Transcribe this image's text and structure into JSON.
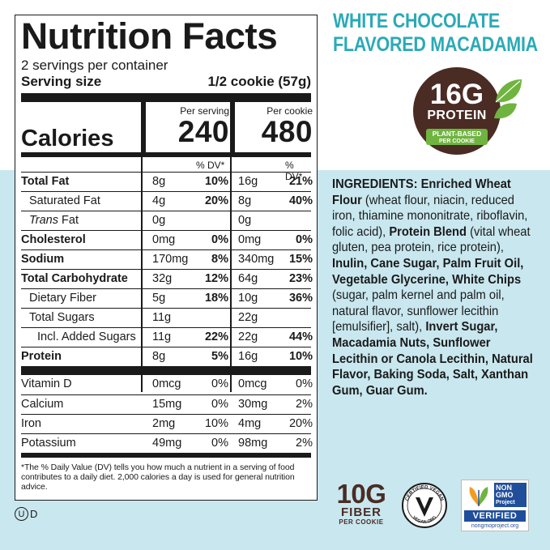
{
  "label": {
    "title": "Nutrition Facts",
    "servings_per_container": "2 servings per container",
    "serving_size_label": "Serving size",
    "serving_size_value": "1/2 cookie (57g)",
    "calories_label": "Calories",
    "col1_header": "Per serving",
    "col2_header": "Per cookie",
    "calories_col1": "240",
    "calories_col2": "480",
    "dv_header": "% DV*",
    "nutrients": [
      {
        "name": "Total Fat",
        "v1": "8g",
        "p1": "10%",
        "v2": "16g",
        "p2": "21%"
      },
      {
        "name": "Saturated Fat",
        "v1": "4g",
        "p1": "20%",
        "v2": "8g",
        "p2": "40%"
      },
      {
        "name": "Trans",
        "suffix": " Fat",
        "v1": "0g",
        "p1": "",
        "v2": "0g",
        "p2": ""
      },
      {
        "name": "Cholesterol",
        "v1": "0mg",
        "p1": "0%",
        "v2": "0mg",
        "p2": "0%"
      },
      {
        "name": "Sodium",
        "v1": "170mg",
        "p1": "8%",
        "v2": "340mg",
        "p2": "15%"
      },
      {
        "name": "Total Carbohydrate",
        "v1": "32g",
        "p1": "12%",
        "v2": "64g",
        "p2": "23%"
      },
      {
        "name": "Dietary Fiber",
        "v1": "5g",
        "p1": "18%",
        "v2": "10g",
        "p2": "36%"
      },
      {
        "name": "Total Sugars",
        "v1": "11g",
        "p1": "",
        "v2": "22g",
        "p2": ""
      },
      {
        "name": "Incl. Added Sugars",
        "v1": "11g",
        "p1": "22%",
        "v2": "22g",
        "p2": "44%"
      },
      {
        "name": "Protein",
        "v1": "8g",
        "p1": "5%",
        "v2": "16g",
        "p2": "10%"
      }
    ],
    "vitamins": [
      {
        "name": "Vitamin D",
        "v1": "0mcg",
        "p1": "0%",
        "v2": "0mcg",
        "p2": "0%"
      },
      {
        "name": "Calcium",
        "v1": "15mg",
        "p1": "0%",
        "v2": "30mg",
        "p2": "2%"
      },
      {
        "name": "Iron",
        "v1": "2mg",
        "p1": "10%",
        "v2": "4mg",
        "p2": "20%"
      },
      {
        "name": "Potassium",
        "v1": "49mg",
        "p1": "0%",
        "v2": "98mg",
        "p2": "2%"
      }
    ],
    "footnote": "*The % Daily Value (DV) tells you how much a nutrient in a serving of food contributes to a daily diet. 2,000 calories a day is used for general nutrition advice."
  },
  "kosher_mark": "U",
  "kosher_suffix": "D",
  "flavor_line1": "WHITE CHOCOLATE",
  "flavor_line2": "FLAVORED MACADAMIA",
  "protein_badge": {
    "amount": "16G",
    "label": "PROTEIN",
    "sub1": "PLANT-BASED",
    "sub2": "PER COOKIE"
  },
  "ingredients": [
    {
      "t": "INGREDIENTS: Enriched Wheat Flour",
      "b": true
    },
    {
      "t": " (wheat flour, niacin, reduced iron, thiamine mononitrate, riboflavin, folic acid), ",
      "b": false
    },
    {
      "t": "Protein Blend",
      "b": true
    },
    {
      "t": " (vital wheat gluten, pea protein, rice protein), ",
      "b": false
    },
    {
      "t": "Inulin, Cane Sugar, Palm Fruit Oil, Vegetable Glycerine, White Chips",
      "b": true
    },
    {
      "t": " (sugar, palm kernel and palm oil, natural flavor, sunflower lecithin [emulsifier], salt), ",
      "b": false
    },
    {
      "t": "Invert Sugar, Macadamia Nuts, Sunflower Lecithin or Canola Lecithin, Natural Flavor, Baking Soda, Salt, Xanthan Gum, Guar Gum.",
      "b": true
    }
  ],
  "fiber_badge": {
    "amount": "10G",
    "label": "FIBER",
    "sub": "PER COOKIE"
  },
  "vegan_badge": {
    "top": "CERTIFIED VEGAN",
    "bottom": "VEGAN.ORG"
  },
  "nongmo_badge": {
    "top1": "NON",
    "top2": "GMO",
    "top3": "Project",
    "verified": "VERIFIED",
    "url": "nongmoproject.org"
  },
  "colors": {
    "teal": "#2aaab6",
    "brown": "#4a2c24",
    "green": "#6fb43f",
    "blue_bg": "#c9e7ef",
    "nongmo_blue": "#1f4e9a"
  }
}
